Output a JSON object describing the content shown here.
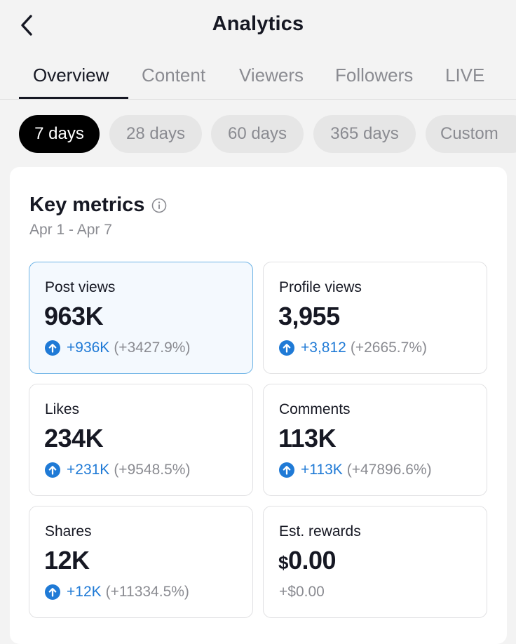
{
  "header": {
    "title": "Analytics"
  },
  "tabs": [
    {
      "label": "Overview",
      "active": true
    },
    {
      "label": "Content"
    },
    {
      "label": "Viewers"
    },
    {
      "label": "Followers"
    },
    {
      "label": "LIVE"
    }
  ],
  "periods": [
    {
      "label": "7 days",
      "active": true
    },
    {
      "label": "28 days"
    },
    {
      "label": "60 days"
    },
    {
      "label": "365 days"
    },
    {
      "label": "Custom"
    }
  ],
  "key_metrics": {
    "title": "Key metrics",
    "date_range": "Apr 1 - Apr 7",
    "items": [
      {
        "label": "Post views",
        "value": "963K",
        "delta": "+936K",
        "pct": "(+3427.9%)",
        "selected": true
      },
      {
        "label": "Profile views",
        "value": "3,955",
        "delta": "+3,812",
        "pct": "(+2665.7%)"
      },
      {
        "label": "Likes",
        "value": "234K",
        "delta": "+231K",
        "pct": "(+9548.5%)"
      },
      {
        "label": "Comments",
        "value": "113K",
        "delta": "+113K",
        "pct": "(+47896.6%)"
      },
      {
        "label": "Shares",
        "value": "12K",
        "delta": "+12K",
        "pct": "(+11334.5%)"
      },
      {
        "label": "Est. rewards",
        "currency": "$",
        "value": "0.00",
        "change": "+$0.00"
      }
    ]
  },
  "colors": {
    "accent": "#1f7ad6",
    "selected_bg": "#f4f9fe",
    "selected_border": "#6fb4e6",
    "page_bg": "#f3f3f3"
  },
  "icons": [
    "back-icon",
    "info-icon",
    "arrow-up-circle-icon"
  ]
}
